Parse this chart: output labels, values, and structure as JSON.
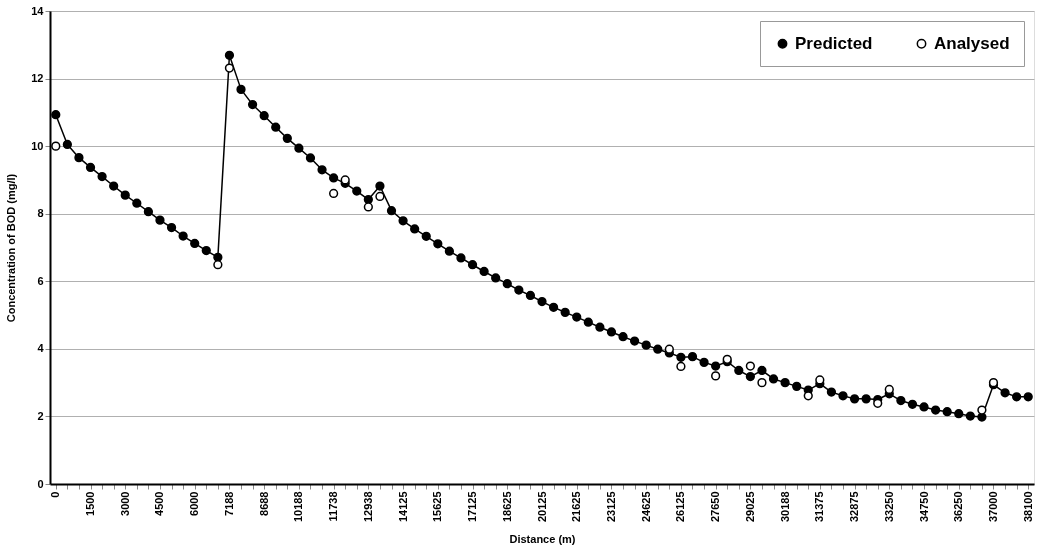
{
  "chart_data": {
    "type": "line",
    "xlabel": "Distance (m)",
    "ylabel": "Concentration of BOD (mg/l)",
    "categories": [
      "0",
      null,
      null,
      "1500",
      null,
      null,
      "3000",
      null,
      null,
      "4500",
      null,
      null,
      "6000",
      null,
      null,
      "7188",
      null,
      null,
      "8688",
      null,
      null,
      "10188",
      null,
      null,
      "11738",
      null,
      null,
      "12938",
      null,
      null,
      "14125",
      null,
      null,
      "15625",
      null,
      null,
      "17125",
      null,
      null,
      "18625",
      null,
      null,
      "20125",
      null,
      null,
      "21625",
      null,
      null,
      "23125",
      null,
      null,
      "24625",
      null,
      null,
      "26125",
      null,
      null,
      "27650",
      null,
      null,
      "29025",
      null,
      null,
      "30188",
      null,
      null,
      "31375",
      null,
      null,
      "32875",
      null,
      null,
      "33250",
      null,
      null,
      "34750",
      null,
      null,
      "36250",
      null,
      null,
      "37000",
      null,
      null,
      "38100"
    ],
    "series": [
      {
        "name": "Predicted",
        "color": "#000000",
        "marker": "circle",
        "values": [
          10.93,
          10.05,
          9.66,
          9.37,
          9.1,
          8.82,
          8.55,
          8.31,
          8.06,
          7.81,
          7.59,
          7.34,
          7.12,
          6.91,
          6.71,
          12.69,
          11.68,
          11.23,
          10.9,
          10.56,
          10.23,
          9.94,
          9.65,
          9.3,
          9.06,
          8.9,
          8.67,
          8.42,
          8.82,
          8.09,
          7.79,
          7.55,
          7.33,
          7.11,
          6.89,
          6.69,
          6.49,
          6.29,
          6.1,
          5.93,
          5.74,
          5.58,
          5.4,
          5.23,
          5.08,
          4.94,
          4.79,
          4.64,
          4.5,
          4.36,
          4.23,
          4.11,
          3.99,
          3.88,
          3.75,
          3.77,
          3.6,
          3.49,
          3.62,
          3.36,
          3.18,
          3.36,
          3.11,
          3.0,
          2.89,
          2.78,
          2.97,
          2.72,
          2.61,
          2.52,
          2.52,
          2.5,
          2.67,
          2.47,
          2.36,
          2.28,
          2.19,
          2.14,
          2.08,
          2.01,
          1.98,
          2.94,
          2.7,
          2.58,
          2.58
        ]
      },
      {
        "name": "Analysed",
        "type": "scatter",
        "color": "#ffffff",
        "marker": "circle",
        "values": [
          10.0,
          null,
          null,
          null,
          null,
          null,
          null,
          null,
          null,
          null,
          null,
          null,
          null,
          null,
          6.49,
          12.31,
          null,
          null,
          null,
          null,
          null,
          null,
          null,
          null,
          8.6,
          9.0,
          null,
          8.2,
          8.51,
          null,
          null,
          null,
          null,
          null,
          null,
          null,
          null,
          null,
          null,
          null,
          null,
          null,
          null,
          null,
          null,
          null,
          null,
          null,
          null,
          null,
          null,
          null,
          null,
          3.99,
          3.48,
          null,
          null,
          3.2,
          3.69,
          null,
          3.49,
          3.0,
          null,
          null,
          null,
          2.61,
          3.08,
          null,
          null,
          null,
          null,
          2.39,
          2.8,
          null,
          null,
          null,
          null,
          null,
          null,
          null,
          2.19,
          3.0,
          null,
          null,
          null
        ]
      }
    ],
    "ylim": [
      0,
      14
    ],
    "yticks": [
      0,
      2,
      4,
      6,
      8,
      10,
      12,
      14
    ],
    "grid": "y",
    "legend": "top right"
  }
}
